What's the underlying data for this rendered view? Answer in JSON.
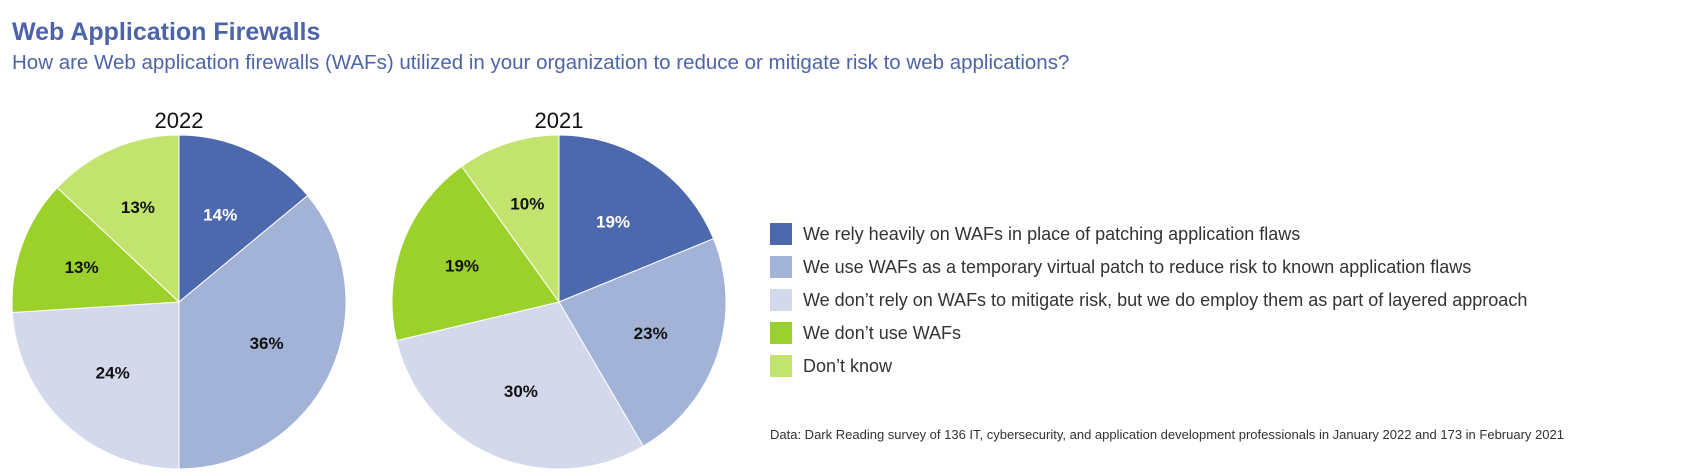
{
  "header": {
    "title": "Web Application Firewalls",
    "subtitle": "How are Web application firewalls (WAFs) utilized in your organization to reduce or mitigate risk to web applications?"
  },
  "chart_data": [
    {
      "type": "pie",
      "title": "2022",
      "categories": [
        "We rely heavily on WAFs in place of patching application flaws",
        "We use WAFs as a temporary virtual patch to reduce risk to known application flaws",
        "We don’t rely on WAFs to mitigate risk, but we do employ them as part of layered approach",
        "We don’t use WAFs",
        "Don’t know"
      ],
      "values": [
        14,
        36,
        24,
        13,
        13
      ],
      "labels": [
        "14%",
        "36%",
        "24%",
        "13%",
        "13%"
      ],
      "colors": [
        "#4d69ad",
        "#a2b3d7",
        "#d3d9ea",
        "#9bd12a",
        "#c2e46f"
      ]
    },
    {
      "type": "pie",
      "title": "2021",
      "categories": [
        "We rely heavily on WAFs in place of patching application flaws",
        "We use WAFs as a temporary virtual patch to reduce risk to known application flaws",
        "We don’t rely on WAFs to mitigate risk, but we do employ them as part of layered approach",
        "We don’t use WAFs",
        "Don’t know"
      ],
      "values": [
        19,
        23,
        30,
        19,
        10
      ],
      "labels": [
        "19%",
        "23%",
        "30%",
        "19%",
        "10%"
      ],
      "colors": [
        "#4d69ad",
        "#a2b3d7",
        "#d3d9ea",
        "#9bd12a",
        "#c2e46f"
      ]
    }
  ],
  "legend": {
    "items": [
      {
        "label": "We rely heavily on WAFs in place of patching application flaws",
        "color": "#4d69ad"
      },
      {
        "label": "We use WAFs as a temporary virtual patch to reduce risk to known application flaws",
        "color": "#a2b3d7"
      },
      {
        "label": "We don’t rely on WAFs to mitigate risk, but we do employ them as part of layered approach",
        "color": "#d3d9ea"
      },
      {
        "label": "We don’t use WAFs",
        "color": "#9bd12a"
      },
      {
        "label": "Don’t know",
        "color": "#c2e46f"
      }
    ]
  },
  "source": "Data: Dark Reading survey of 136 IT, cybersecurity, and application development professionals in January 2022 and 173 in February 2021"
}
